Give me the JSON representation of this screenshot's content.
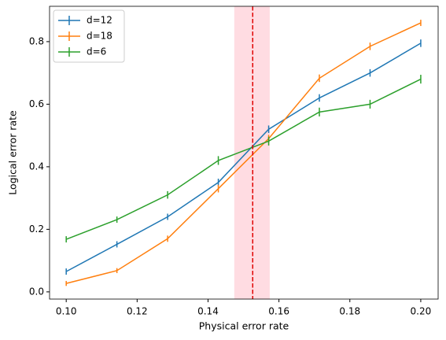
{
  "chart_data": {
    "type": "line",
    "xlabel": "Physical error rate",
    "ylabel": "Logical error rate",
    "x": [
      0.1,
      0.1143,
      0.1286,
      0.1429,
      0.1571,
      0.1714,
      0.1857,
      0.2
    ],
    "series": [
      {
        "name": "d=12",
        "color": "#1f77b4",
        "values": [
          0.065,
          0.152,
          0.24,
          0.35,
          0.52,
          0.62,
          0.7,
          0.795
        ],
        "errors": [
          0.01,
          0.01,
          0.01,
          0.012,
          0.012,
          0.012,
          0.012,
          0.012
        ]
      },
      {
        "name": "d=18",
        "color": "#ff7f0e",
        "values": [
          0.027,
          0.068,
          0.17,
          0.33,
          0.49,
          0.683,
          0.785,
          0.86
        ],
        "errors": [
          0.008,
          0.008,
          0.01,
          0.012,
          0.012,
          0.012,
          0.012,
          0.01
        ]
      },
      {
        "name": "d=6",
        "color": "#2ca02c",
        "values": [
          0.168,
          0.231,
          0.31,
          0.42,
          0.482,
          0.575,
          0.6,
          0.68
        ],
        "errors": [
          0.01,
          0.01,
          0.012,
          0.014,
          0.014,
          0.014,
          0.014,
          0.014
        ]
      }
    ],
    "vline": {
      "value": 0.1526,
      "color": "#e00000"
    },
    "band": {
      "range": [
        0.1474,
        0.1574
      ],
      "color": "#ffc0cb"
    },
    "xlim": [
      0.0953,
      0.2049
    ],
    "ylim": [
      -0.023,
      0.913
    ],
    "xticks": [
      {
        "value": 0.1,
        "label": "0.10"
      },
      0.12,
      0.14,
      0.16,
      0.18,
      {
        "value": 0.2,
        "label": "0.20"
      }
    ],
    "yticks": [
      {
        "value": 0,
        "label": "0.0"
      },
      0.2,
      0.4,
      0.6,
      0.8
    ],
    "legend": "upper left"
  }
}
